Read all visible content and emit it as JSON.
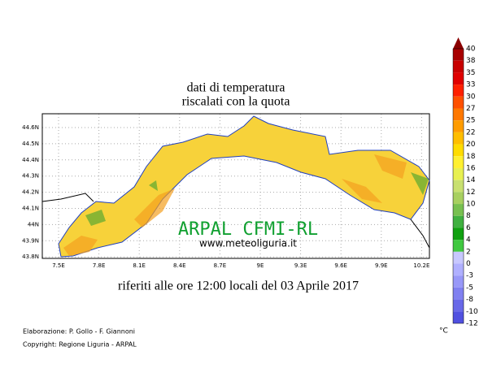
{
  "title": {
    "line1": "dati di temperatura",
    "line2": "riscalati con la quota"
  },
  "map": {
    "lat_labels": [
      "44.6N",
      "44.5N",
      "44.4N",
      "44.3N",
      "44.2N",
      "44.1N",
      "44N",
      "43.9N",
      "43.8N"
    ],
    "lon_labels": [
      "7.5E",
      "7.8E",
      "8.1E",
      "8.4E",
      "8.7E",
      "9E",
      "9.3E",
      "9.6E",
      "9.9E",
      "10.2E"
    ],
    "watermark": "ARPAL CFMI-RL",
    "website": "www.meteoliguria.it"
  },
  "subtitle": "riferiti alle ore 12:00 locali del 03 Aprile 2017",
  "credits": [
    "Elaborazione: P. Gollo - F. Giannoni",
    "Copyright: Regione Liguria - ARPAL"
  ],
  "legend": {
    "unit": "°C",
    "labels": [
      40,
      38,
      35,
      33,
      30,
      27,
      25,
      22,
      20,
      18,
      16,
      14,
      12,
      10,
      8,
      6,
      4,
      2,
      0,
      -3,
      -5,
      -8,
      -10,
      -12
    ],
    "colors": [
      "#8b0000",
      "#a80000",
      "#c80000",
      "#e00000",
      "#ff2000",
      "#ff5000",
      "#ff7800",
      "#ff9c00",
      "#ffbe00",
      "#ffdc00",
      "#fff030",
      "#e8f050",
      "#c8e070",
      "#a8d060",
      "#78c050",
      "#40b040",
      "#10a010",
      "#40c840",
      "#c8c8ff",
      "#b0b0ff",
      "#9898f8",
      "#8080f0",
      "#6868e8",
      "#5050e0"
    ]
  }
}
